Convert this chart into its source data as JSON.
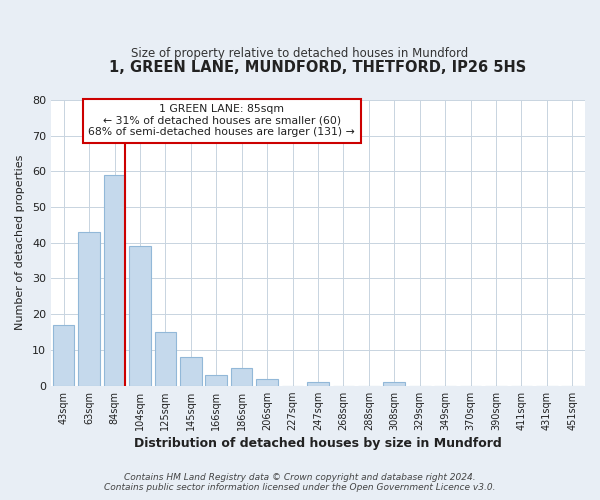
{
  "title": "1, GREEN LANE, MUNDFORD, THETFORD, IP26 5HS",
  "subtitle": "Size of property relative to detached houses in Mundford",
  "xlabel": "Distribution of detached houses by size in Mundford",
  "ylabel": "Number of detached properties",
  "bar_labels": [
    "43sqm",
    "63sqm",
    "84sqm",
    "104sqm",
    "125sqm",
    "145sqm",
    "166sqm",
    "186sqm",
    "206sqm",
    "227sqm",
    "247sqm",
    "268sqm",
    "288sqm",
    "308sqm",
    "329sqm",
    "349sqm",
    "370sqm",
    "390sqm",
    "411sqm",
    "431sqm",
    "451sqm"
  ],
  "bar_values": [
    17,
    43,
    59,
    39,
    15,
    8,
    3,
    5,
    2,
    0,
    1,
    0,
    0,
    1,
    0,
    0,
    0,
    0,
    0,
    0,
    0
  ],
  "bar_color": "#c5d9ec",
  "bar_edge_color": "#92b8d8",
  "ylim": [
    0,
    80
  ],
  "yticks": [
    0,
    10,
    20,
    30,
    40,
    50,
    60,
    70,
    80
  ],
  "vline_color": "#cc0000",
  "annotation_text_line1": "1 GREEN LANE: 85sqm",
  "annotation_text_line2": "← 31% of detached houses are smaller (60)",
  "annotation_text_line3": "68% of semi-detached houses are larger (131) →",
  "annotation_box_color": "#ffffff",
  "annotation_box_edge": "#cc0000",
  "footnote1": "Contains HM Land Registry data © Crown copyright and database right 2024.",
  "footnote2": "Contains public sector information licensed under the Open Government Licence v3.0.",
  "bg_color": "#e8eef5",
  "plot_bg_color": "#ffffff",
  "grid_color": "#c8d4e0"
}
